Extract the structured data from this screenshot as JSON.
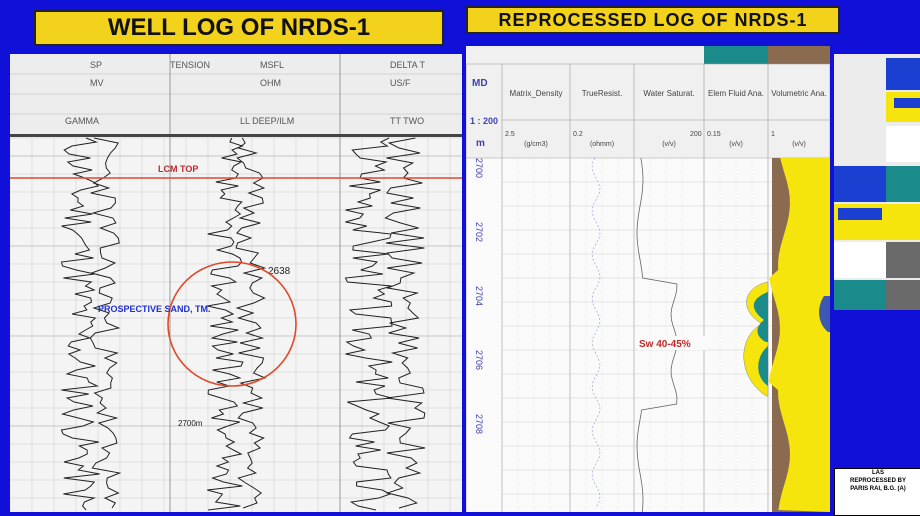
{
  "titles": {
    "left": "WELL LOG OF NRDS-1",
    "right": "REPROCESSED LOG OF NRDS-1"
  },
  "left_log": {
    "track_headers_top": [
      "SP",
      "TENSION",
      "MSFL",
      "DELTA T"
    ],
    "track_headers_units": [
      "MV",
      "",
      "OHM",
      "US/F"
    ],
    "track_headers_bottom": [
      "GAMMA",
      "",
      "LL DEEP/ILM",
      "TT TWO"
    ],
    "lcm_top_label": "LCM TOP",
    "prospective_label": "PROSPECTIVE SAND, TM.",
    "depth_mark": "2638",
    "depth_lower": "2700m"
  },
  "right_log": {
    "depth_header_md": "MD",
    "depth_header_scale": "1 : 200",
    "depth_header_unit": "m",
    "track_headers": [
      "Matrix_Density",
      "TrueResist.",
      "Water Saturat.",
      "Elem Fluid Ana.",
      "Volumetric Ana."
    ],
    "track_units": [
      "(g/cm3)",
      "(ohmm)",
      "(v/v)",
      "(v/v)",
      "(v/v)"
    ],
    "track_scale_left": [
      "2.5",
      "0.2",
      "",
      "0.15",
      "1"
    ],
    "track_scale_right": [
      "",
      "",
      "200",
      "",
      ""
    ],
    "depth_ticks": [
      "2700",
      "2702",
      "2704",
      "2706",
      "2708"
    ],
    "sw_annotation": "Sw 40-45%"
  },
  "legend": {
    "colors": {
      "blue": "#1b3fd0",
      "yellow": "#f5e50c",
      "teal": "#1a8a8a",
      "gray": "#6a6a6a",
      "brown": "#8a6b50"
    },
    "footer_lines": [
      "LAS",
      "REPROCESSED BY",
      "PARIS RAI, B.G. (A)"
    ]
  }
}
